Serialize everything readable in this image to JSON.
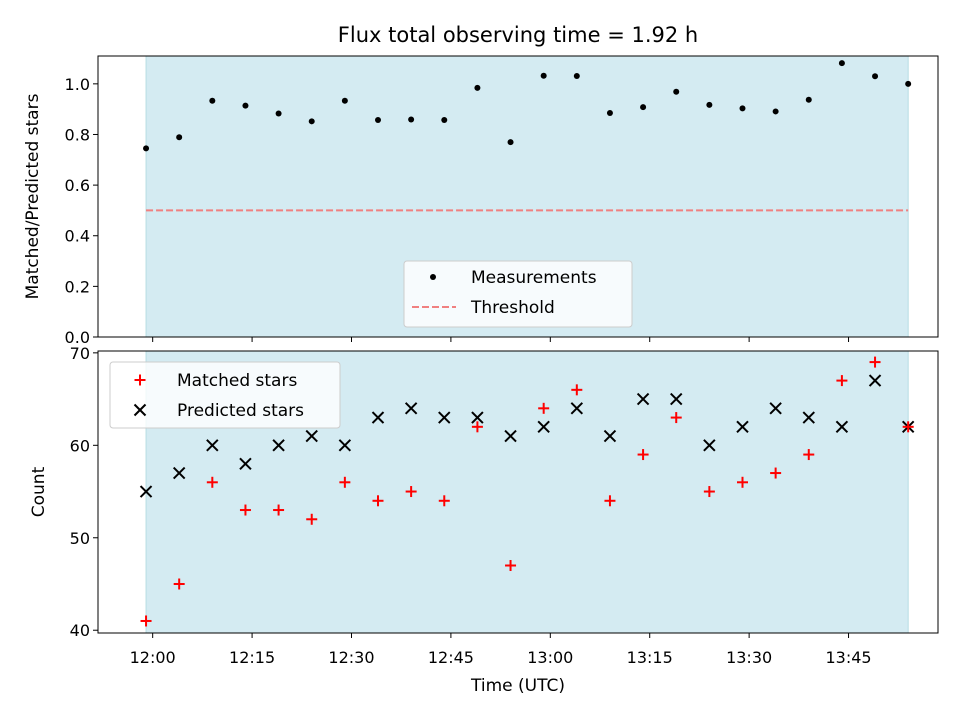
{
  "chart_data": [
    {
      "type": "scatter",
      "title": "Flux total observing time = 1.92 h",
      "xlabel": "",
      "ylabel": "Matched/Predicted stars",
      "ylim": [
        0,
        1.11
      ],
      "yticks": [
        "0.0",
        "0.2",
        "0.4",
        "0.6",
        "0.8",
        "1.0"
      ],
      "shaded_region_color": "#d4ebf2",
      "legend": {
        "placement": "lower center",
        "entries": [
          "Measurements",
          "Threshold"
        ]
      },
      "series": [
        {
          "name": "Measurements",
          "marker": "dot",
          "color": "#000000",
          "x": [
            "11:59",
            "12:04",
            "12:09",
            "12:14",
            "12:19",
            "12:24",
            "12:29",
            "12:34",
            "12:39",
            "12:44",
            "12:49",
            "12:54",
            "12:59",
            "13:04",
            "13:09",
            "13:14",
            "13:19",
            "13:24",
            "13:29",
            "13:34",
            "13:39",
            "13:44",
            "13:49",
            "13:54"
          ],
          "values": [
            0.745,
            0.789,
            0.933,
            0.914,
            0.883,
            0.852,
            0.933,
            0.857,
            0.859,
            0.857,
            0.984,
            0.77,
            1.032,
            1.031,
            0.885,
            0.908,
            0.969,
            0.917,
            0.903,
            0.891,
            0.937,
            1.082,
            1.03,
            1.0
          ]
        },
        {
          "name": "Threshold",
          "style": "dashed",
          "color": "#f08080",
          "x": [
            "11:59",
            "13:54"
          ],
          "values": [
            0.5,
            0.5
          ]
        }
      ]
    },
    {
      "type": "scatter",
      "title": "",
      "xlabel": "Time (UTC)",
      "ylabel": "Count",
      "ylim": [
        39.7,
        70.2
      ],
      "yticks": [
        "40",
        "50",
        "60",
        "70"
      ],
      "xticks": [
        "12:00",
        "12:15",
        "12:30",
        "12:45",
        "13:00",
        "13:15",
        "13:30",
        "13:45"
      ],
      "shaded_region_color": "#d4ebf2",
      "legend": {
        "placement": "upper left",
        "entries": [
          "Matched stars",
          "Predicted stars"
        ]
      },
      "series": [
        {
          "name": "Matched stars",
          "marker": "plus",
          "color": "#ff0000",
          "x": [
            "11:59",
            "12:04",
            "12:09",
            "12:14",
            "12:19",
            "12:24",
            "12:29",
            "12:34",
            "12:39",
            "12:44",
            "12:49",
            "12:54",
            "12:59",
            "13:04",
            "13:09",
            "13:14",
            "13:19",
            "13:24",
            "13:29",
            "13:34",
            "13:39",
            "13:44",
            "13:49",
            "13:54"
          ],
          "values": [
            41,
            45,
            56,
            53,
            53,
            52,
            56,
            54,
            55,
            54,
            62,
            47,
            64,
            66,
            54,
            59,
            63,
            55,
            56,
            57,
            59,
            67,
            69,
            62
          ]
        },
        {
          "name": "Predicted stars",
          "marker": "x",
          "color": "#000000",
          "x": [
            "11:59",
            "12:04",
            "12:09",
            "12:14",
            "12:19",
            "12:24",
            "12:29",
            "12:34",
            "12:39",
            "12:44",
            "12:49",
            "12:54",
            "12:59",
            "13:04",
            "13:09",
            "13:14",
            "13:19",
            "13:24",
            "13:29",
            "13:34",
            "13:39",
            "13:44",
            "13:49",
            "13:54"
          ],
          "values": [
            55,
            57,
            60,
            58,
            60,
            61,
            60,
            63,
            64,
            63,
            63,
            61,
            62,
            64,
            61,
            65,
            65,
            60,
            62,
            64,
            63,
            62,
            67,
            62
          ]
        }
      ]
    }
  ]
}
